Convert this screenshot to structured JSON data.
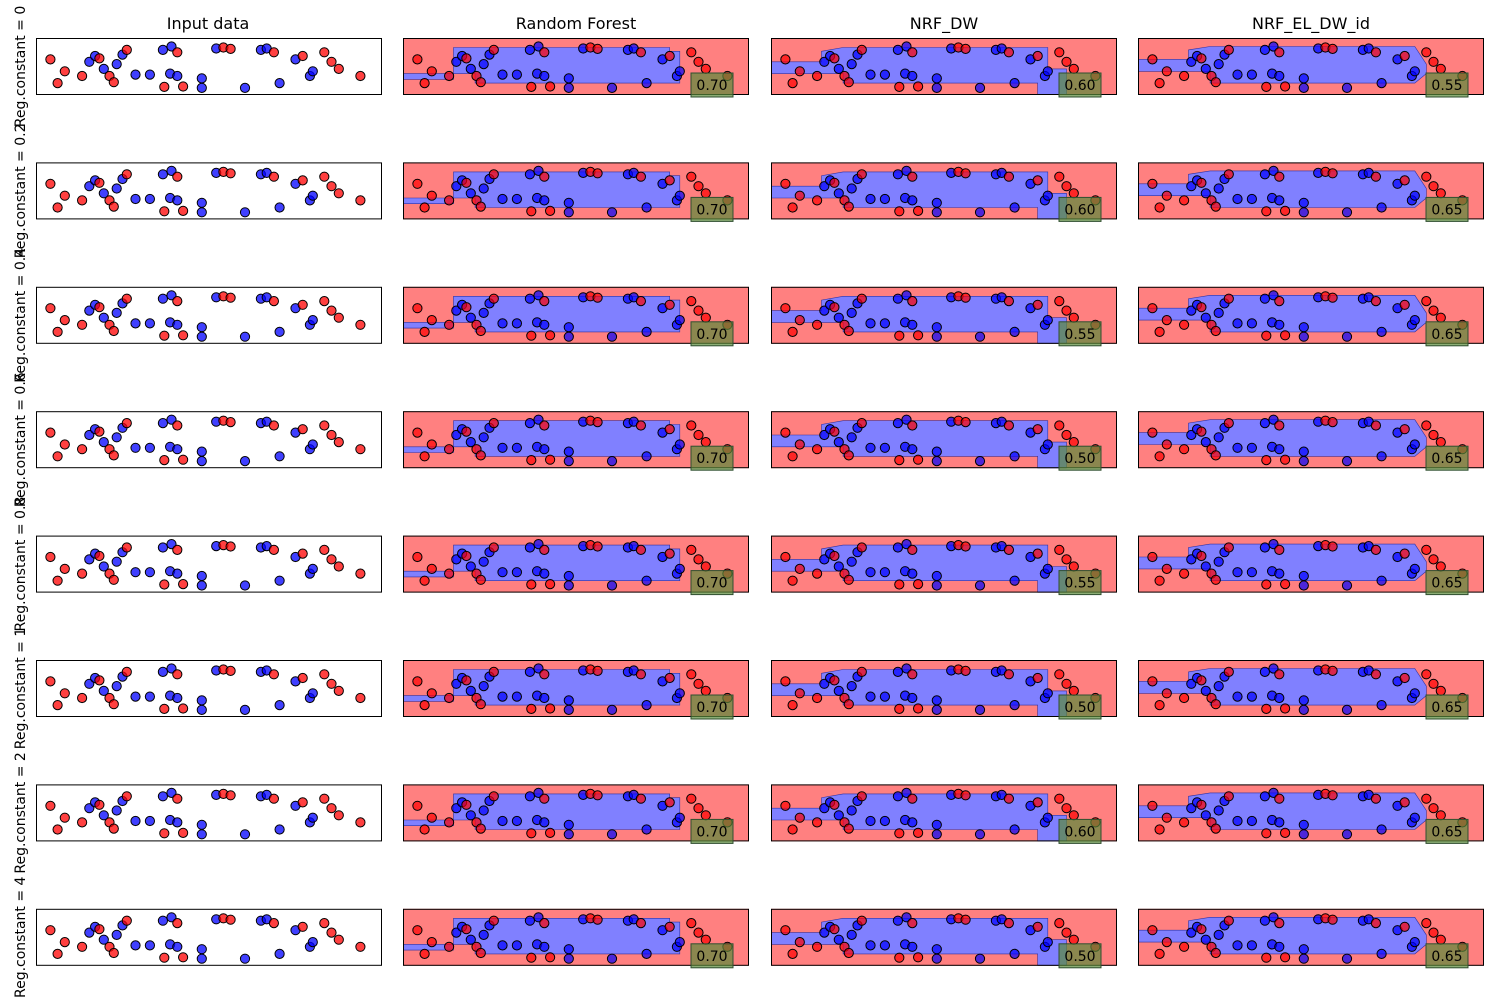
{
  "figure": {
    "column_titles": [
      "Input data",
      "Random Forest",
      "NRF_DW",
      "NRF_EL_DW_id"
    ],
    "row_labels": [
      "Reg.constant = 0",
      "Reg.constant = 0.2",
      "Reg.constant = 0.4",
      "Reg.constant = 0.6",
      "Reg.constant = 0.8",
      "Reg.constant = 1",
      "Reg.constant = 2",
      "Reg.constant = 4"
    ],
    "scores": [
      [
        "0.70",
        "0.60",
        "0.55"
      ],
      [
        "0.70",
        "0.60",
        "0.65"
      ],
      [
        "0.70",
        "0.55",
        "0.65"
      ],
      [
        "0.70",
        "0.50",
        "0.65"
      ],
      [
        "0.70",
        "0.55",
        "0.65"
      ],
      [
        "0.70",
        "0.50",
        "0.65"
      ],
      [
        "0.70",
        "0.60",
        "0.65"
      ],
      [
        "0.70",
        "0.50",
        "0.65"
      ]
    ]
  },
  "colors": {
    "class_red": "#ff0000",
    "class_blue": "#0000ff",
    "region_red": "#ff8080",
    "region_blue": "#8080ff",
    "score_box": "#5a8a3a"
  },
  "chart_data": {
    "type": "scatter",
    "grid": false,
    "xlim": [
      -1.2,
      1.2
    ],
    "ylim": [
      -0.6,
      0.6
    ],
    "points": [
      {
        "x": -1.1,
        "y": 0.15,
        "class": 0
      },
      {
        "x": -1.05,
        "y": -0.35,
        "class": 0
      },
      {
        "x": -1.0,
        "y": -0.1,
        "class": 0
      },
      {
        "x": -0.88,
        "y": -0.2,
        "class": 0
      },
      {
        "x": -0.83,
        "y": 0.1,
        "class": 1
      },
      {
        "x": -0.79,
        "y": 0.22,
        "class": 1
      },
      {
        "x": -0.76,
        "y": 0.17,
        "class": 0
      },
      {
        "x": -0.73,
        "y": -0.05,
        "class": 1
      },
      {
        "x": -0.69,
        "y": -0.2,
        "class": 0
      },
      {
        "x": -0.66,
        "y": -0.33,
        "class": 0
      },
      {
        "x": -0.64,
        "y": 0.05,
        "class": 1
      },
      {
        "x": -0.6,
        "y": 0.25,
        "class": 1
      },
      {
        "x": -0.57,
        "y": 0.35,
        "class": 0
      },
      {
        "x": -0.51,
        "y": -0.17,
        "class": 1
      },
      {
        "x": -0.41,
        "y": -0.17,
        "class": 1
      },
      {
        "x": -0.32,
        "y": 0.35,
        "class": 1
      },
      {
        "x": -0.31,
        "y": -0.43,
        "class": 0
      },
      {
        "x": -0.27,
        "y": -0.15,
        "class": 1
      },
      {
        "x": -0.26,
        "y": 0.42,
        "class": 1
      },
      {
        "x": -0.22,
        "y": 0.3,
        "class": 0
      },
      {
        "x": -0.18,
        "y": -0.42,
        "class": 0
      },
      {
        "x": -0.22,
        "y": -0.2,
        "class": 1
      },
      {
        "x": -0.05,
        "y": -0.25,
        "class": 1
      },
      {
        "x": -0.05,
        "y": -0.45,
        "class": 1
      },
      {
        "x": 0.05,
        "y": 0.38,
        "class": 1
      },
      {
        "x": 0.1,
        "y": 0.4,
        "class": 0
      },
      {
        "x": 0.15,
        "y": 0.37,
        "class": 0
      },
      {
        "x": 0.25,
        "y": -0.45,
        "class": 1
      },
      {
        "x": 0.36,
        "y": 0.35,
        "class": 1
      },
      {
        "x": 0.4,
        "y": 0.38,
        "class": 1
      },
      {
        "x": 0.45,
        "y": 0.3,
        "class": 0
      },
      {
        "x": 0.49,
        "y": -0.35,
        "class": 1
      },
      {
        "x": 0.6,
        "y": 0.15,
        "class": 1
      },
      {
        "x": 0.65,
        "y": 0.22,
        "class": 0
      },
      {
        "x": 0.7,
        "y": -0.2,
        "class": 1
      },
      {
        "x": 0.72,
        "y": -0.1,
        "class": 1
      },
      {
        "x": 0.8,
        "y": 0.3,
        "class": 0
      },
      {
        "x": 0.85,
        "y": 0.1,
        "class": 0
      },
      {
        "x": 0.9,
        "y": -0.05,
        "class": 0
      },
      {
        "x": 1.05,
        "y": -0.2,
        "class": 0
      }
    ]
  }
}
